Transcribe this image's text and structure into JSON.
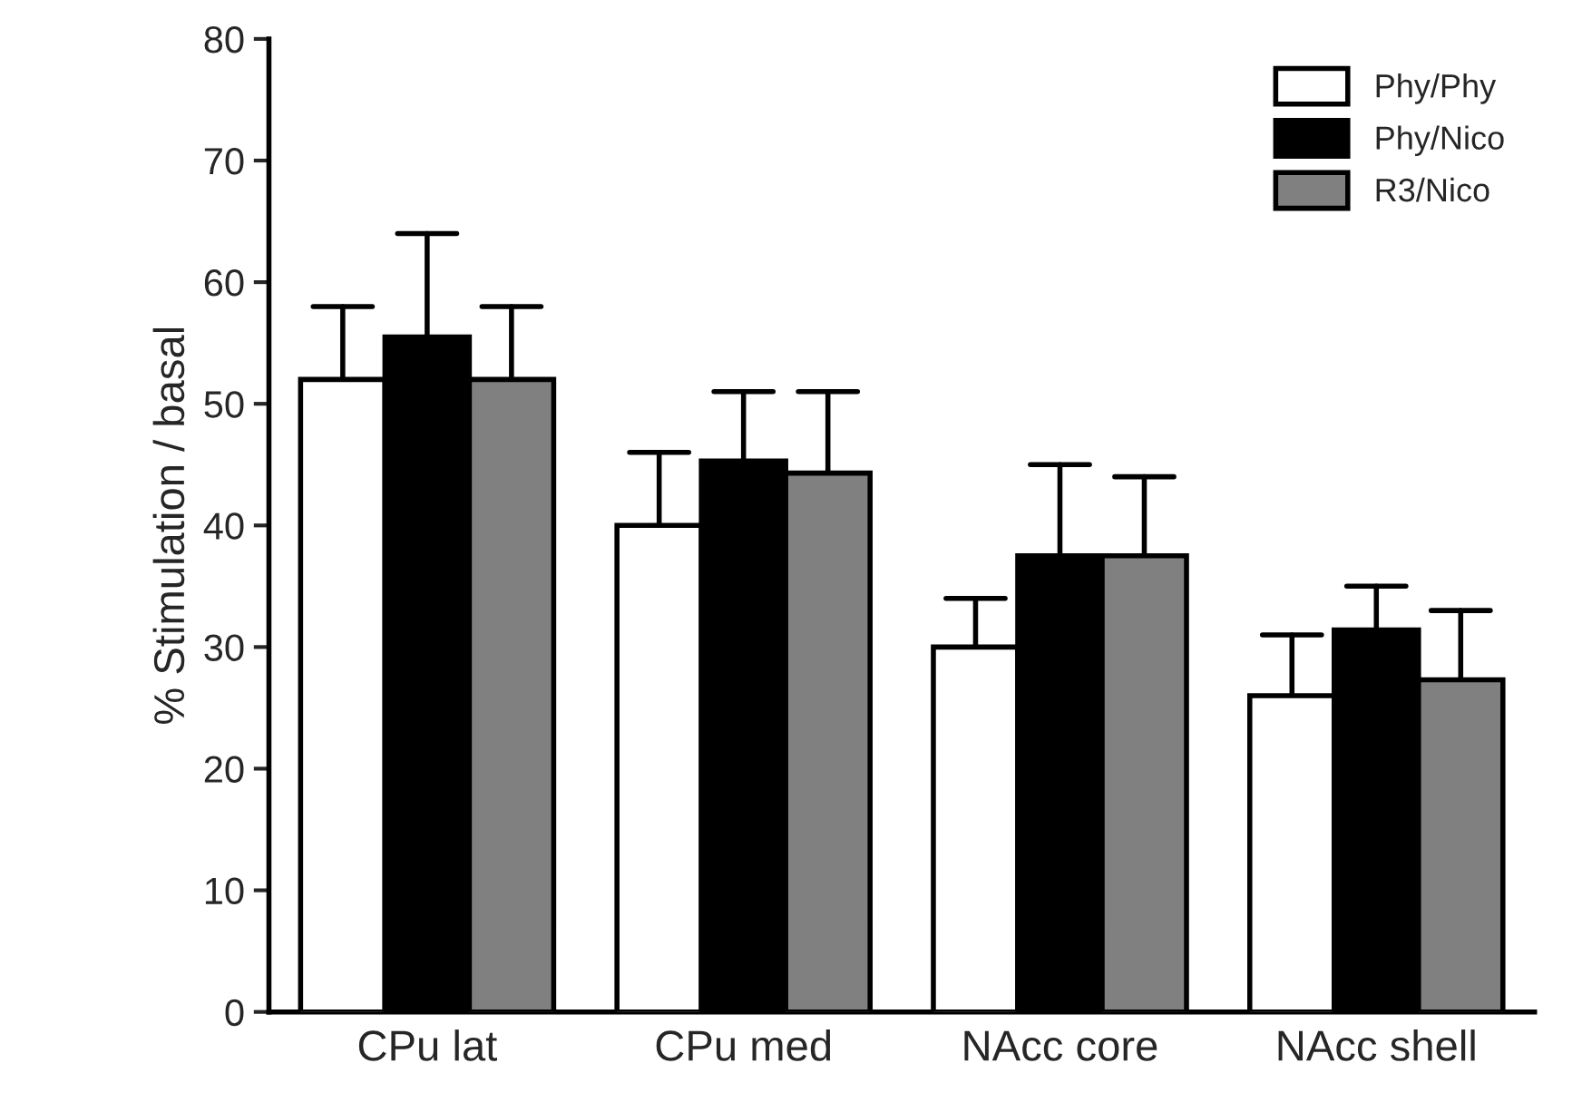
{
  "chart_data": {
    "type": "bar",
    "ylabel": "% Stimulation / basal",
    "categories": [
      "CPu lat",
      "CPu med",
      "NAcc core",
      "NAcc shell"
    ],
    "series": [
      {
        "name": "Phy/Phy",
        "color": "#ffffff",
        "values": [
          52,
          40,
          30,
          26
        ],
        "errors": [
          [
            52,
            58
          ],
          [
            40,
            46
          ],
          [
            30,
            34
          ],
          [
            26,
            31
          ]
        ]
      },
      {
        "name": "Phy/Nico",
        "color": "#000000",
        "values": [
          55.5,
          45.3,
          37.5,
          31.4
        ],
        "errors": [
          [
            55.5,
            64
          ],
          [
            45.3,
            51
          ],
          [
            37.5,
            45
          ],
          [
            31.4,
            35
          ]
        ]
      },
      {
        "name": "R3/Nico",
        "color": "#808080",
        "values": [
          52,
          44.3,
          37.5,
          27.3
        ],
        "errors": [
          [
            52,
            58
          ],
          [
            44.3,
            51
          ],
          [
            37.5,
            44
          ],
          [
            27.3,
            33
          ]
        ]
      }
    ],
    "ylim": [
      0,
      80
    ],
    "yticks": [
      0,
      10,
      20,
      30,
      40,
      50,
      60,
      70,
      80
    ],
    "grid": false,
    "legend": "top right"
  }
}
